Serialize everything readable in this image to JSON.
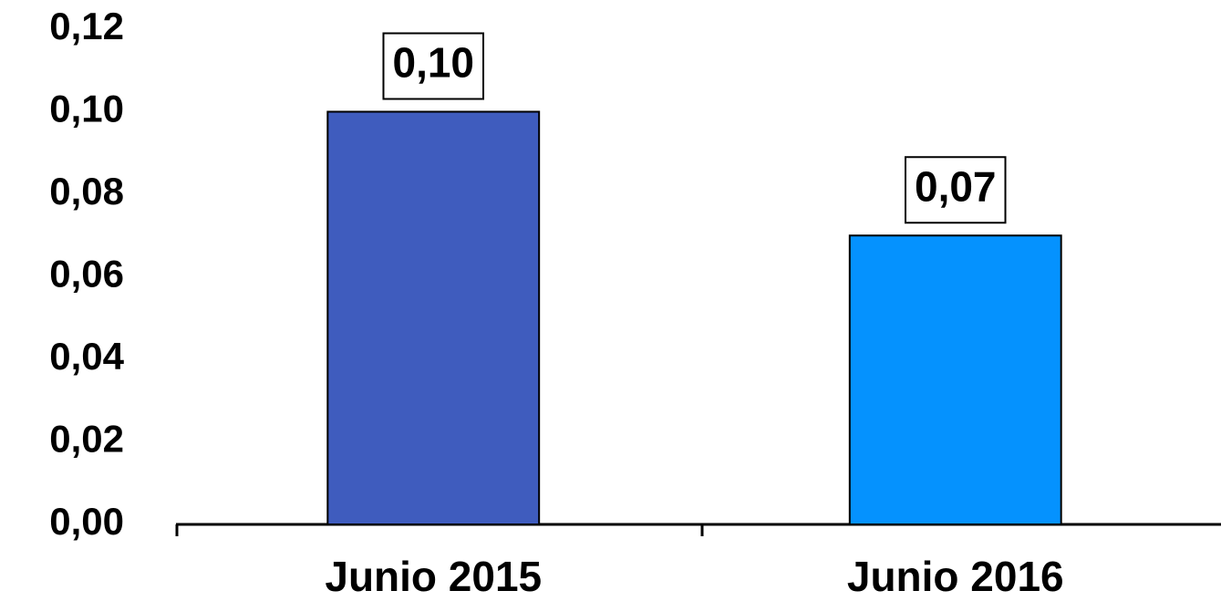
{
  "chart_data": {
    "type": "bar",
    "categories": [
      "Junio 2015",
      "Junio 2016"
    ],
    "values": [
      0.1,
      0.07
    ],
    "value_labels": [
      "0,10",
      "0,07"
    ],
    "colors": [
      "#3f5cbe",
      "#0592fe"
    ],
    "ylim": [
      0,
      0.12
    ],
    "yticks": [
      {
        "value": 0,
        "label": "0,00"
      },
      {
        "value": 0.02,
        "label": "0,02"
      },
      {
        "value": 0.04,
        "label": "0,04"
      },
      {
        "value": 0.06,
        "label": "0,06"
      },
      {
        "value": 0.08,
        "label": "0,08"
      },
      {
        "value": 0.1,
        "label": "0,10"
      },
      {
        "value": 0.12,
        "label": "0,12"
      }
    ],
    "grid": false
  }
}
